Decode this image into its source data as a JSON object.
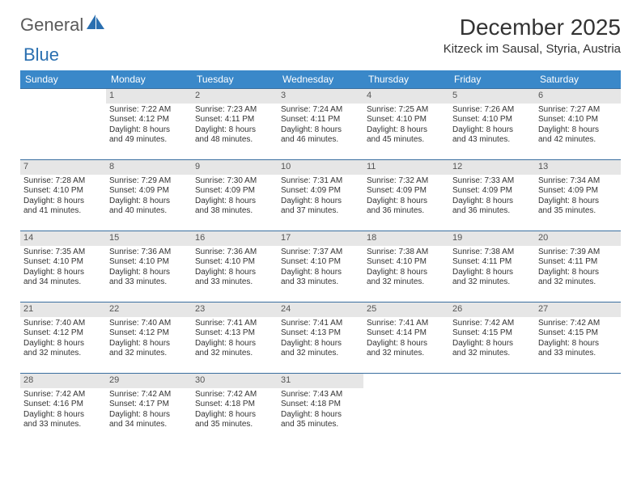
{
  "brand": {
    "text1": "General",
    "text2": "Blue"
  },
  "title": "December 2025",
  "location": "Kitzeck im Sausal, Styria, Austria",
  "colors": {
    "header_bg": "#3a88c9",
    "header_text": "#ffffff",
    "daynum_bg": "#e6e6e6",
    "cell_border": "#3a6fa0",
    "brand_grey": "#5a5a5a",
    "brand_blue": "#2a6fb0"
  },
  "day_names": [
    "Sunday",
    "Monday",
    "Tuesday",
    "Wednesday",
    "Thursday",
    "Friday",
    "Saturday"
  ],
  "weeks": [
    [
      {
        "num": "",
        "sunrise": "",
        "sunset": "",
        "daylight1": "",
        "daylight2": ""
      },
      {
        "num": "1",
        "sunrise": "Sunrise: 7:22 AM",
        "sunset": "Sunset: 4:12 PM",
        "daylight1": "Daylight: 8 hours",
        "daylight2": "and 49 minutes."
      },
      {
        "num": "2",
        "sunrise": "Sunrise: 7:23 AM",
        "sunset": "Sunset: 4:11 PM",
        "daylight1": "Daylight: 8 hours",
        "daylight2": "and 48 minutes."
      },
      {
        "num": "3",
        "sunrise": "Sunrise: 7:24 AM",
        "sunset": "Sunset: 4:11 PM",
        "daylight1": "Daylight: 8 hours",
        "daylight2": "and 46 minutes."
      },
      {
        "num": "4",
        "sunrise": "Sunrise: 7:25 AM",
        "sunset": "Sunset: 4:10 PM",
        "daylight1": "Daylight: 8 hours",
        "daylight2": "and 45 minutes."
      },
      {
        "num": "5",
        "sunrise": "Sunrise: 7:26 AM",
        "sunset": "Sunset: 4:10 PM",
        "daylight1": "Daylight: 8 hours",
        "daylight2": "and 43 minutes."
      },
      {
        "num": "6",
        "sunrise": "Sunrise: 7:27 AM",
        "sunset": "Sunset: 4:10 PM",
        "daylight1": "Daylight: 8 hours",
        "daylight2": "and 42 minutes."
      }
    ],
    [
      {
        "num": "7",
        "sunrise": "Sunrise: 7:28 AM",
        "sunset": "Sunset: 4:10 PM",
        "daylight1": "Daylight: 8 hours",
        "daylight2": "and 41 minutes."
      },
      {
        "num": "8",
        "sunrise": "Sunrise: 7:29 AM",
        "sunset": "Sunset: 4:09 PM",
        "daylight1": "Daylight: 8 hours",
        "daylight2": "and 40 minutes."
      },
      {
        "num": "9",
        "sunrise": "Sunrise: 7:30 AM",
        "sunset": "Sunset: 4:09 PM",
        "daylight1": "Daylight: 8 hours",
        "daylight2": "and 38 minutes."
      },
      {
        "num": "10",
        "sunrise": "Sunrise: 7:31 AM",
        "sunset": "Sunset: 4:09 PM",
        "daylight1": "Daylight: 8 hours",
        "daylight2": "and 37 minutes."
      },
      {
        "num": "11",
        "sunrise": "Sunrise: 7:32 AM",
        "sunset": "Sunset: 4:09 PM",
        "daylight1": "Daylight: 8 hours",
        "daylight2": "and 36 minutes."
      },
      {
        "num": "12",
        "sunrise": "Sunrise: 7:33 AM",
        "sunset": "Sunset: 4:09 PM",
        "daylight1": "Daylight: 8 hours",
        "daylight2": "and 36 minutes."
      },
      {
        "num": "13",
        "sunrise": "Sunrise: 7:34 AM",
        "sunset": "Sunset: 4:09 PM",
        "daylight1": "Daylight: 8 hours",
        "daylight2": "and 35 minutes."
      }
    ],
    [
      {
        "num": "14",
        "sunrise": "Sunrise: 7:35 AM",
        "sunset": "Sunset: 4:10 PM",
        "daylight1": "Daylight: 8 hours",
        "daylight2": "and 34 minutes."
      },
      {
        "num": "15",
        "sunrise": "Sunrise: 7:36 AM",
        "sunset": "Sunset: 4:10 PM",
        "daylight1": "Daylight: 8 hours",
        "daylight2": "and 33 minutes."
      },
      {
        "num": "16",
        "sunrise": "Sunrise: 7:36 AM",
        "sunset": "Sunset: 4:10 PM",
        "daylight1": "Daylight: 8 hours",
        "daylight2": "and 33 minutes."
      },
      {
        "num": "17",
        "sunrise": "Sunrise: 7:37 AM",
        "sunset": "Sunset: 4:10 PM",
        "daylight1": "Daylight: 8 hours",
        "daylight2": "and 33 minutes."
      },
      {
        "num": "18",
        "sunrise": "Sunrise: 7:38 AM",
        "sunset": "Sunset: 4:10 PM",
        "daylight1": "Daylight: 8 hours",
        "daylight2": "and 32 minutes."
      },
      {
        "num": "19",
        "sunrise": "Sunrise: 7:38 AM",
        "sunset": "Sunset: 4:11 PM",
        "daylight1": "Daylight: 8 hours",
        "daylight2": "and 32 minutes."
      },
      {
        "num": "20",
        "sunrise": "Sunrise: 7:39 AM",
        "sunset": "Sunset: 4:11 PM",
        "daylight1": "Daylight: 8 hours",
        "daylight2": "and 32 minutes."
      }
    ],
    [
      {
        "num": "21",
        "sunrise": "Sunrise: 7:40 AM",
        "sunset": "Sunset: 4:12 PM",
        "daylight1": "Daylight: 8 hours",
        "daylight2": "and 32 minutes."
      },
      {
        "num": "22",
        "sunrise": "Sunrise: 7:40 AM",
        "sunset": "Sunset: 4:12 PM",
        "daylight1": "Daylight: 8 hours",
        "daylight2": "and 32 minutes."
      },
      {
        "num": "23",
        "sunrise": "Sunrise: 7:41 AM",
        "sunset": "Sunset: 4:13 PM",
        "daylight1": "Daylight: 8 hours",
        "daylight2": "and 32 minutes."
      },
      {
        "num": "24",
        "sunrise": "Sunrise: 7:41 AM",
        "sunset": "Sunset: 4:13 PM",
        "daylight1": "Daylight: 8 hours",
        "daylight2": "and 32 minutes."
      },
      {
        "num": "25",
        "sunrise": "Sunrise: 7:41 AM",
        "sunset": "Sunset: 4:14 PM",
        "daylight1": "Daylight: 8 hours",
        "daylight2": "and 32 minutes."
      },
      {
        "num": "26",
        "sunrise": "Sunrise: 7:42 AM",
        "sunset": "Sunset: 4:15 PM",
        "daylight1": "Daylight: 8 hours",
        "daylight2": "and 32 minutes."
      },
      {
        "num": "27",
        "sunrise": "Sunrise: 7:42 AM",
        "sunset": "Sunset: 4:15 PM",
        "daylight1": "Daylight: 8 hours",
        "daylight2": "and 33 minutes."
      }
    ],
    [
      {
        "num": "28",
        "sunrise": "Sunrise: 7:42 AM",
        "sunset": "Sunset: 4:16 PM",
        "daylight1": "Daylight: 8 hours",
        "daylight2": "and 33 minutes."
      },
      {
        "num": "29",
        "sunrise": "Sunrise: 7:42 AM",
        "sunset": "Sunset: 4:17 PM",
        "daylight1": "Daylight: 8 hours",
        "daylight2": "and 34 minutes."
      },
      {
        "num": "30",
        "sunrise": "Sunrise: 7:42 AM",
        "sunset": "Sunset: 4:18 PM",
        "daylight1": "Daylight: 8 hours",
        "daylight2": "and 35 minutes."
      },
      {
        "num": "31",
        "sunrise": "Sunrise: 7:43 AM",
        "sunset": "Sunset: 4:18 PM",
        "daylight1": "Daylight: 8 hours",
        "daylight2": "and 35 minutes."
      },
      {
        "num": "",
        "sunrise": "",
        "sunset": "",
        "daylight1": "",
        "daylight2": ""
      },
      {
        "num": "",
        "sunrise": "",
        "sunset": "",
        "daylight1": "",
        "daylight2": ""
      },
      {
        "num": "",
        "sunrise": "",
        "sunset": "",
        "daylight1": "",
        "daylight2": ""
      }
    ]
  ]
}
